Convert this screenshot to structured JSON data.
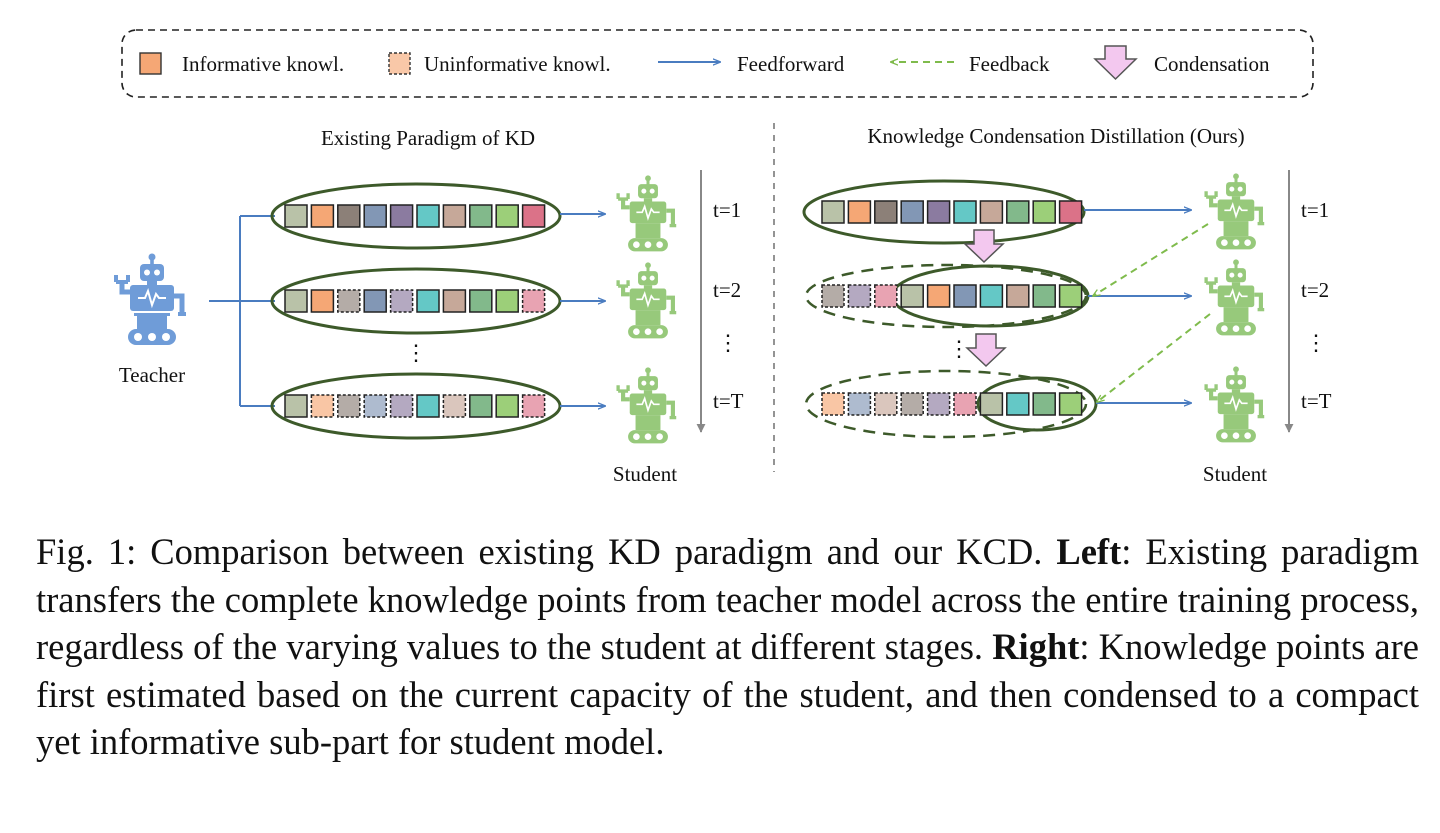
{
  "legend": {
    "informative": "Informative knowl.",
    "uninformative": "Uninformative knowl.",
    "feedforward": "Feedforward",
    "feedback": "Feedback",
    "condensation": "Condensation"
  },
  "left_panel": {
    "title": "Existing Paradigm of KD",
    "teacher_label": "Teacher",
    "student_label": "Student",
    "t1": "t=1",
    "t2": "t=2",
    "tT": "t=T",
    "vdots": "⋮"
  },
  "right_panel": {
    "title": "Knowledge Condensation Distillation (Ours)",
    "student_label": "Student",
    "t1": "t=1",
    "t2": "t=2",
    "tT": "t=T",
    "vdots": "⋮"
  },
  "colors": {
    "sage": "#b9c2a8",
    "orange": "#f5a775",
    "taupe": "#8c8078",
    "slate": "#8297b5",
    "purple": "#8b7ba0",
    "teal": "#64c8c6",
    "rose": "#c6a899",
    "green": "#82b98b",
    "lime": "#9ccf79",
    "pink": "#db7288",
    "ellipse": "#3d5a2a",
    "feedforward": "#4a7cc0",
    "feedback": "#7fbb4c",
    "robot_teacher": "#6f9cd8",
    "robot_student": "#97c97b",
    "condense_fill": "#f3c8ef",
    "condense_stroke": "#555555"
  },
  "caption": {
    "fig_label": "Fig. 1:",
    "text1": " Comparison between existing KD paradigm and our KCD. ",
    "left_bold": "Left",
    "text2": ": Existing paradigm transfers the complete knowledge points from teacher model across the entire training process, regardless of the varying values to the student at different stages. ",
    "right_bold": "Right",
    "text3": ": Knowledge points are first estimated based on the current capacity of the student, and then condensed to a compact yet informative sub-part for student model."
  }
}
